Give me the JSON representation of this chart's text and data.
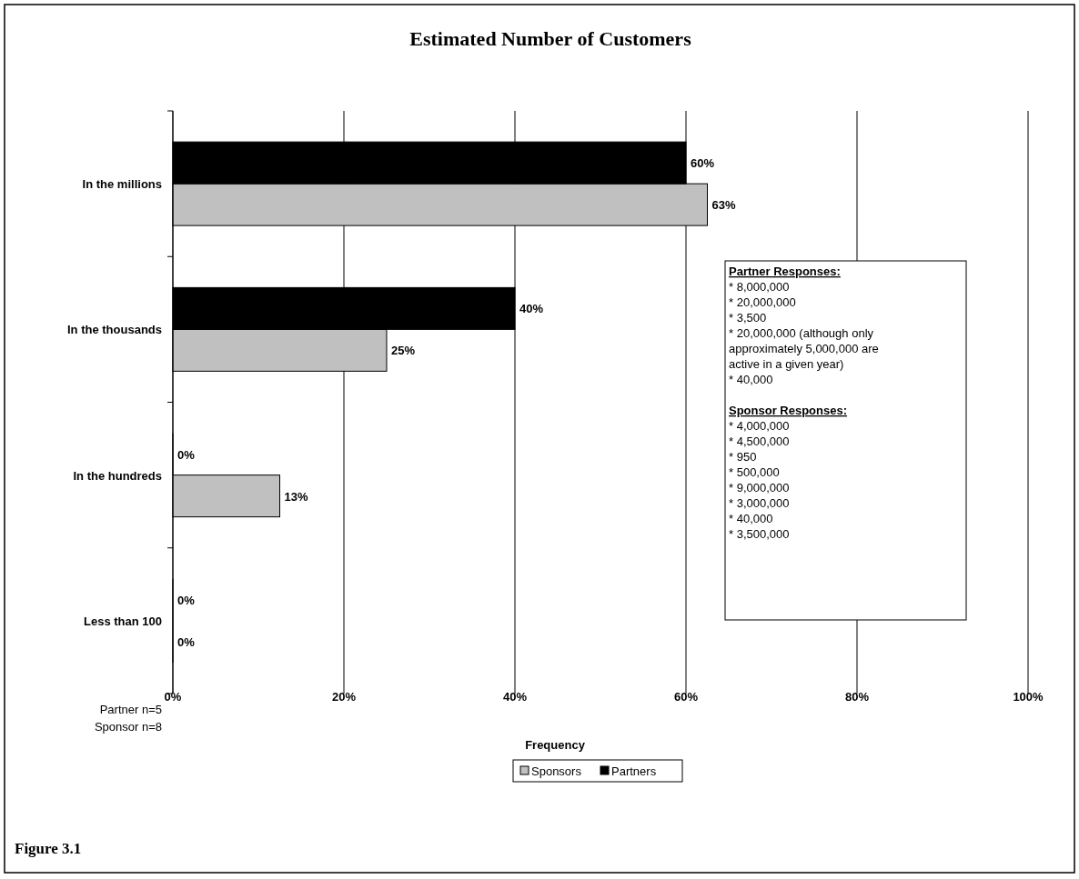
{
  "chart_data": {
    "type": "bar",
    "orientation": "horizontal",
    "title": "Estimated Number of Customers",
    "xlabel": "Frequency",
    "categories": [
      "In the millions",
      "In the thousands",
      "In the hundreds",
      "Less than 100"
    ],
    "series": [
      {
        "name": "Sponsors",
        "color": "#c0c0c0",
        "values": [
          62.5,
          25,
          12.5,
          0
        ],
        "value_labels": [
          "63%",
          "25%",
          "13%",
          "0%"
        ]
      },
      {
        "name": "Partners",
        "color": "#000000",
        "values": [
          60,
          40,
          0,
          0
        ],
        "value_labels": [
          "60%",
          "40%",
          "0%",
          "0%"
        ]
      }
    ],
    "xlim": [
      0,
      100
    ],
    "xticks": [
      {
        "value": 0,
        "label": "0%"
      },
      {
        "value": 20,
        "label": "20%"
      },
      {
        "value": 40,
        "label": "40%"
      },
      {
        "value": 60,
        "label": "60%"
      },
      {
        "value": 80,
        "label": "80%"
      },
      {
        "value": 100,
        "label": "100%"
      }
    ],
    "grid": "x",
    "legend": "bottom",
    "annotations": [
      "Partner Responses:",
      "* 8,000,000\n* 20,000,000\n* 3,500\n* 20,000,000 (although only\napproximately 5,000,000 are\nactive in a given year)\n* 40,000",
      "Sponsor Responses:",
      "* 4,000,000\n* 4,500,000\n* 950\n* 500,000\n* 9,000,000\n* 3,000,000\n* 40,000\n* 3,500,000",
      "Partner n=5",
      "Sponsor n=8",
      "Figure 3.1"
    ]
  }
}
